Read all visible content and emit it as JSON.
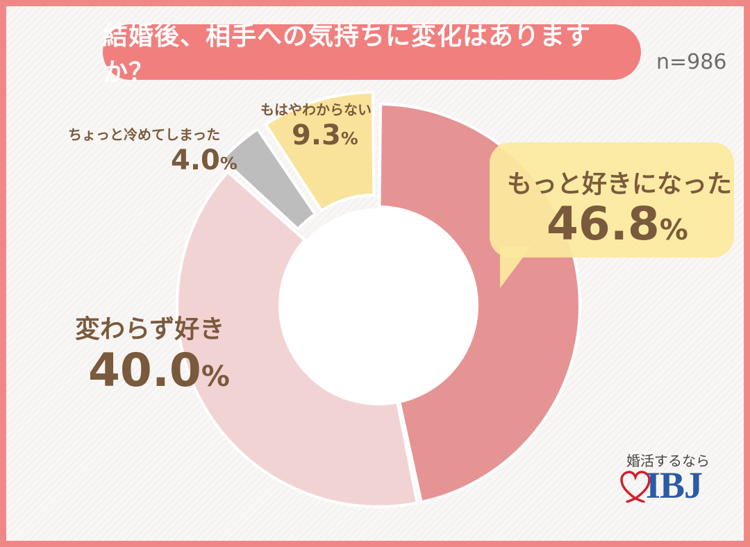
{
  "header": {
    "title": "結婚後、相手への気持ちに変化はありますか？",
    "sample_size": "n=986"
  },
  "labels": {
    "more_love": {
      "name": "もっと好きになった",
      "value": "46.8",
      "unit": "%"
    },
    "same_love": {
      "name": "変わらず好き",
      "value": "40.0",
      "unit": "%"
    },
    "cooled": {
      "name": "ちょっと冷めてしまった",
      "value": "4.0",
      "unit": "%"
    },
    "unsure": {
      "name": "もはやわからない",
      "value": "9.3",
      "unit": "%"
    }
  },
  "logo": {
    "tagline": "婚活するなら",
    "brand": "IBJ"
  },
  "chart_data": {
    "type": "pie",
    "title": "結婚後、相手への気持ちに変化はありますか？",
    "donut": true,
    "categories": [
      "もっと好きになった",
      "変わらず好き",
      "ちょっと冷めてしまった",
      "もはやわからない"
    ],
    "values": [
      46.8,
      40.0,
      4.0,
      9.3
    ],
    "colors": [
      "#e69394",
      "#f2d3d4",
      "#bdbdbd",
      "#f9e39b"
    ],
    "exploded": [
      "ちょっと冷めてしまった",
      "もはやわからない"
    ],
    "accent": {
      "title_bg": "#f07f7e",
      "label_text": "#7a5a3c",
      "bubble": "#fbea9d"
    }
  }
}
